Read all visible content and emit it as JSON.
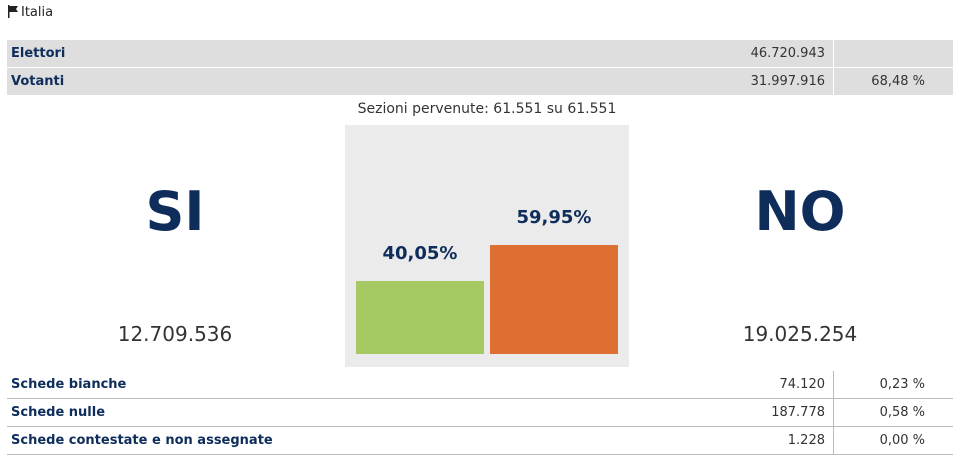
{
  "header": {
    "title": "Italia"
  },
  "summary": {
    "rows": [
      [
        "Elettori",
        "46.720.943"
      ],
      [
        "Votanti",
        "31.997.916",
        "68,48 %"
      ]
    ]
  },
  "sections_note": "Sezioni pervenute: 61.551 su 61.551",
  "results": {
    "yes": {
      "label": "SI",
      "votes": "12.709.536"
    },
    "no": {
      "label": "NO",
      "votes": "19.025.254"
    }
  },
  "bars": {
    "type": "bar",
    "values": [
      40.05,
      59.95
    ],
    "value_labels": [
      "40,05%",
      "59,95%"
    ],
    "colors": [
      "#a6c964",
      "#dc6f31"
    ]
  },
  "footer": {
    "rows": [
      [
        "Schede bianche",
        "74.120",
        "0,23 %"
      ],
      [
        "Schede nulle",
        "187.778",
        "0,58 %"
      ],
      [
        "Schede contestate e non assegnate",
        "1.228",
        "0,00 %"
      ]
    ]
  }
}
